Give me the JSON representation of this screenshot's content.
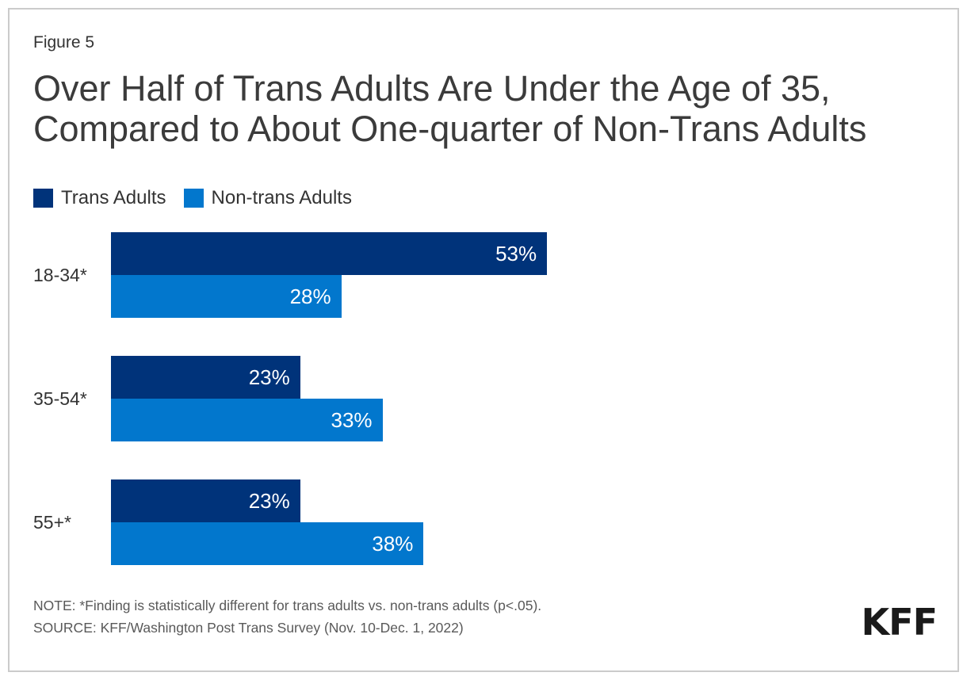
{
  "figure_label": "Figure 5",
  "title_line1": "Over Half of Trans Adults Are Under the Age of 35,",
  "title_line2": "Compared to About One-quarter of Non-Trans Adults",
  "legend": [
    {
      "label": "Trans Adults",
      "color": "#00337A"
    },
    {
      "label": "Non-trans Adults",
      "color": "#0277CD"
    }
  ],
  "chart_data": {
    "type": "bar",
    "orientation": "horizontal",
    "title": "Over Half of Trans Adults Are Under the Age of 35, Compared to About One-quarter of Non-Trans Adults",
    "categories": [
      "18-34*",
      "35-54*",
      "55+*"
    ],
    "series": [
      {
        "name": "Trans Adults",
        "color": "#00337A",
        "values": [
          53,
          23,
          23
        ]
      },
      {
        "name": "Non-trans Adults",
        "color": "#0277CD",
        "values": [
          28,
          33,
          38
        ]
      }
    ],
    "value_suffix": "%",
    "xlim": [
      0,
      100
    ],
    "grid": false,
    "legend_position": "top",
    "value_labels": "inside-end"
  },
  "note": "NOTE: *Finding is statistically different for trans adults vs. non-trans adults (p<.05).",
  "source": "SOURCE: KFF/Washington Post Trans Survey (Nov. 10-Dec. 1, 2022)",
  "logo_text": "KFF"
}
